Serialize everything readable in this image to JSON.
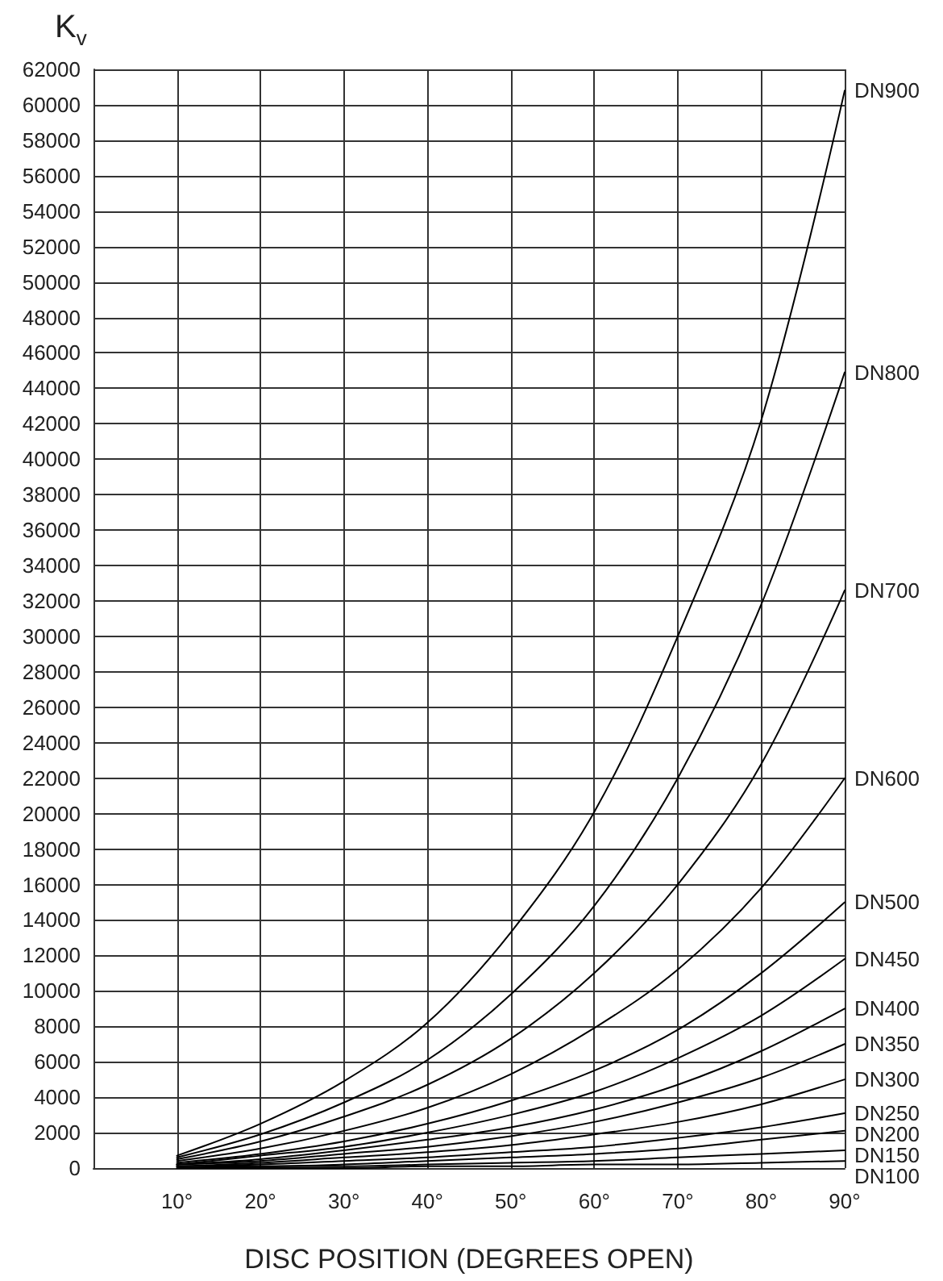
{
  "chart_data": {
    "type": "line",
    "xlabel": "DISC POSITION (DEGREES OPEN)",
    "ylabel": "K$_{v}$",
    "x": [
      10,
      20,
      30,
      40,
      50,
      60,
      70,
      80,
      90
    ],
    "xlim": [
      0,
      90
    ],
    "xticks": [
      {
        "value": 0,
        "label": null
      },
      {
        "value": 10,
        "label": "10°"
      },
      {
        "value": 20,
        "label": "20°"
      },
      {
        "value": 30,
        "label": "30°"
      },
      {
        "value": 40,
        "label": "40°"
      },
      {
        "value": 50,
        "label": "50°"
      },
      {
        "value": 60,
        "label": "60°"
      },
      {
        "value": 70,
        "label": "70°"
      },
      {
        "value": 80,
        "label": "80°"
      },
      {
        "value": 90,
        "label": "90°"
      }
    ],
    "ylim": [
      0,
      62000
    ],
    "yticks": [
      0,
      2000,
      4000,
      6000,
      8000,
      10000,
      12000,
      14000,
      16000,
      18000,
      20000,
      22000,
      24000,
      26000,
      28000,
      30000,
      32000,
      34000,
      36000,
      38000,
      40000,
      42000,
      44000,
      46000,
      48000,
      50000,
      52000,
      54000,
      56000,
      58000,
      60000,
      62000
    ],
    "grid": true,
    "legend": false,
    "marker": "none",
    "line_style": "solid",
    "series": [
      {
        "name": "DN900",
        "color": "#000000",
        "values": [
          700,
          2500,
          4900,
          8200,
          13300,
          20100,
          30000,
          42200,
          60800
        ]
      },
      {
        "name": "DN800",
        "color": "#000000",
        "values": [
          600,
          1900,
          3700,
          6100,
          9800,
          14800,
          22000,
          31800,
          44900
        ]
      },
      {
        "name": "DN700",
        "color": "#000000",
        "values": [
          500,
          1500,
          2900,
          4700,
          7300,
          11000,
          16000,
          22800,
          32600
        ]
      },
      {
        "name": "DN600",
        "color": "#000000",
        "values": [
          400,
          1100,
          2100,
          3400,
          5300,
          7900,
          11200,
          15800,
          22000
        ]
      },
      {
        "name": "DN500",
        "color": "#000000",
        "values": [
          300,
          800,
          1500,
          2500,
          3800,
          5500,
          7800,
          11000,
          15000
        ]
      },
      {
        "name": "DN450",
        "color": "#000000",
        "values": [
          200,
          700,
          1200,
          2000,
          3000,
          4300,
          6200,
          8600,
          11800
        ]
      },
      {
        "name": "DN400",
        "color": "#000000",
        "values": [
          200,
          500,
          1000,
          1600,
          2300,
          3300,
          4700,
          6600,
          9000
        ]
      },
      {
        "name": "DN350",
        "color": "#000000",
        "values": [
          200,
          400,
          800,
          1200,
          1800,
          2600,
          3700,
          5100,
          7000
        ]
      },
      {
        "name": "DN300",
        "color": "#000000",
        "values": [
          100,
          300,
          600,
          900,
          1300,
          1900,
          2600,
          3600,
          5000
        ]
      },
      {
        "name": "DN250",
        "color": "#000000",
        "values": [
          100,
          200,
          400,
          600,
          900,
          1200,
          1700,
          2300,
          3100
        ]
      },
      {
        "name": "DN200",
        "color": "#000000",
        "values": [
          100,
          100,
          200,
          400,
          600,
          800,
          1100,
          1600,
          2100
        ]
      },
      {
        "name": "DN150",
        "color": "#000000",
        "values": [
          0,
          100,
          100,
          200,
          300,
          400,
          600,
          800,
          1000
        ]
      },
      {
        "name": "DN100",
        "color": "#000000",
        "values": [
          0,
          0,
          0,
          100,
          100,
          200,
          200,
          300,
          400
        ]
      }
    ]
  }
}
